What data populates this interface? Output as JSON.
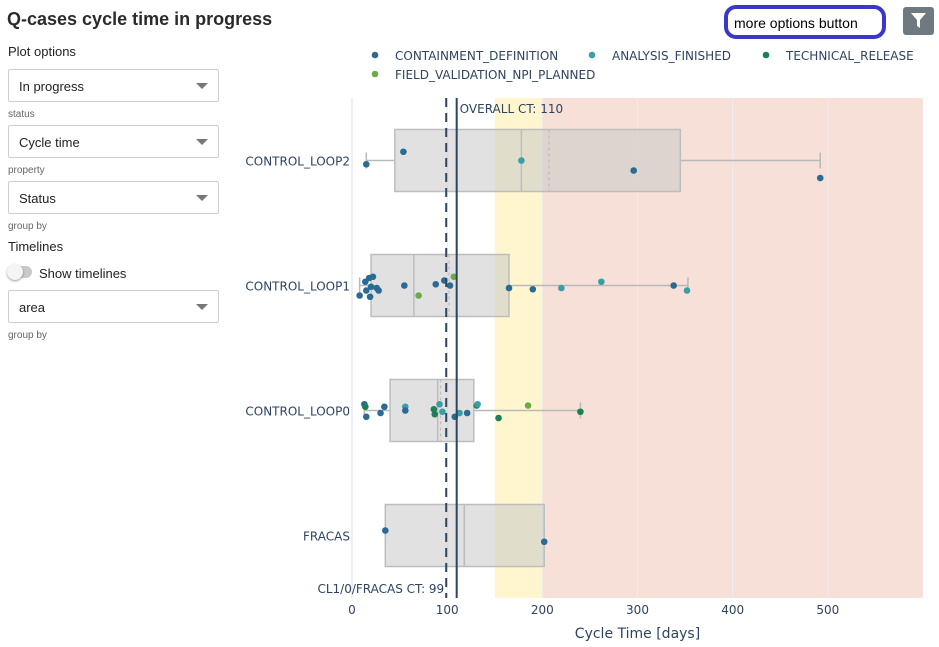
{
  "page": {
    "title": "Q-cases cycle time in progress"
  },
  "sidebar": {
    "plot_options_label": "Plot options",
    "status_select": {
      "value": "In progress",
      "helper": "status"
    },
    "property_select": {
      "value": "Cycle time",
      "helper": "property"
    },
    "groupby_select": {
      "value": "Status",
      "helper": "group by"
    },
    "timelines_label": "Timelines",
    "show_timelines": {
      "label": "Show timelines",
      "checked": false
    },
    "timeline_groupby_select": {
      "value": "area",
      "helper": "group by"
    }
  },
  "toolbar": {
    "more_options_label": "more options button",
    "filter_icon": "filter-icon"
  },
  "chart_data": {
    "type": "box",
    "orientation": "horizontal",
    "xlabel": "Cycle Time [days]",
    "ylabel": "",
    "xlim": [
      0,
      600
    ],
    "xticks": [
      0,
      100,
      200,
      300,
      400,
      500
    ],
    "categories": [
      "CONTROL_LOOP2",
      "CONTROL_LOOP1",
      "CONTROL_LOOP0",
      "FRACAS"
    ],
    "legend": {
      "placement": "top",
      "entries": [
        {
          "name": "CONTAINMENT_DEFINITION",
          "color": "#2a6a93"
        },
        {
          "name": "ANALYSIS_FINISHED",
          "color": "#3a9ea8"
        },
        {
          "name": "TECHNICAL_RELEASE",
          "color": "#1a8055"
        },
        {
          "name": "FIELD_VALIDATION_NPI_PLANNED",
          "color": "#6aab45"
        }
      ]
    },
    "bands": [
      {
        "from": 150,
        "to": 200,
        "color": "#fff6cf"
      },
      {
        "from": 200,
        "to": 600,
        "color": "#f6e0d7"
      }
    ],
    "reference_lines": [
      {
        "x": 110,
        "label": "OVERALL CT: 110",
        "style": "solid",
        "color": "#2e4460"
      },
      {
        "x": 99,
        "label": "CL1/0/FRACAS CT: 99",
        "style": "dashed",
        "color": "#2e4460"
      }
    ],
    "boxes": [
      {
        "category": "CONTROL_LOOP2",
        "whisker_low": 15,
        "q1": 45,
        "median": 178,
        "mean": 207,
        "q3": 345,
        "whisker_high": 492
      },
      {
        "category": "CONTROL_LOOP1",
        "whisker_low": 8,
        "q1": 20,
        "median": 65,
        "mean": 102,
        "q3": 165,
        "whisker_high": 353
      },
      {
        "category": "CONTROL_LOOP0",
        "whisker_low": 13,
        "q1": 40,
        "median": 90,
        "mean": 93,
        "q3": 128,
        "whisker_high": 240
      },
      {
        "category": "FRACAS",
        "whisker_low": 35,
        "q1": 35,
        "median": 118,
        "mean": 118,
        "q3": 202,
        "whisker_high": 202
      }
    ],
    "points": [
      {
        "category": "CONTROL_LOOP2",
        "x": 15,
        "jitter": 0.03,
        "series": "CONTAINMENT_DEFINITION"
      },
      {
        "category": "CONTROL_LOOP2",
        "x": 54,
        "jitter": -0.07,
        "series": "CONTAINMENT_DEFINITION"
      },
      {
        "category": "CONTROL_LOOP2",
        "x": 178,
        "jitter": 0.0,
        "series": "ANALYSIS_FINISHED"
      },
      {
        "category": "CONTROL_LOOP2",
        "x": 296,
        "jitter": 0.08,
        "series": "CONTAINMENT_DEFINITION"
      },
      {
        "category": "CONTROL_LOOP2",
        "x": 492,
        "jitter": 0.14,
        "series": "CONTAINMENT_DEFINITION"
      },
      {
        "category": "CONTROL_LOOP1",
        "x": 8,
        "jitter": 0.08,
        "series": "CONTAINMENT_DEFINITION"
      },
      {
        "category": "CONTROL_LOOP1",
        "x": 14,
        "jitter": -0.03,
        "series": "CONTAINMENT_DEFINITION"
      },
      {
        "category": "CONTROL_LOOP1",
        "x": 15,
        "jitter": 0.04,
        "series": "CONTAINMENT_DEFINITION"
      },
      {
        "category": "CONTROL_LOOP1",
        "x": 18,
        "jitter": -0.06,
        "series": "CONTAINMENT_DEFINITION"
      },
      {
        "category": "CONTROL_LOOP1",
        "x": 19,
        "jitter": 0.09,
        "series": "CONTAINMENT_DEFINITION"
      },
      {
        "category": "CONTROL_LOOP1",
        "x": 20,
        "jitter": 0.01,
        "series": "CONTAINMENT_DEFINITION"
      },
      {
        "category": "CONTROL_LOOP1",
        "x": 22,
        "jitter": -0.07,
        "series": "CONTAINMENT_DEFINITION"
      },
      {
        "category": "CONTROL_LOOP1",
        "x": 26,
        "jitter": 0.02,
        "series": "CONTAINMENT_DEFINITION"
      },
      {
        "category": "CONTROL_LOOP1",
        "x": 28,
        "jitter": 0.04,
        "series": "CONTAINMENT_DEFINITION"
      },
      {
        "category": "CONTROL_LOOP1",
        "x": 55,
        "jitter": 0.0,
        "series": "CONTAINMENT_DEFINITION"
      },
      {
        "category": "CONTROL_LOOP1",
        "x": 70,
        "jitter": 0.08,
        "series": "FIELD_VALIDATION_NPI_PLANNED"
      },
      {
        "category": "CONTROL_LOOP1",
        "x": 88,
        "jitter": -0.01,
        "series": "CONTAINMENT_DEFINITION"
      },
      {
        "category": "CONTROL_LOOP1",
        "x": 97,
        "jitter": -0.04,
        "series": "CONTAINMENT_DEFINITION"
      },
      {
        "category": "CONTROL_LOOP1",
        "x": 103,
        "jitter": 0.0,
        "series": "CONTAINMENT_DEFINITION"
      },
      {
        "category": "CONTROL_LOOP1",
        "x": 107,
        "jitter": -0.07,
        "series": "FIELD_VALIDATION_NPI_PLANNED"
      },
      {
        "category": "CONTROL_LOOP1",
        "x": 165,
        "jitter": 0.02,
        "series": "CONTAINMENT_DEFINITION"
      },
      {
        "category": "CONTROL_LOOP1",
        "x": 190,
        "jitter": 0.03,
        "series": "CONTAINMENT_DEFINITION"
      },
      {
        "category": "CONTROL_LOOP1",
        "x": 220,
        "jitter": 0.02,
        "series": "ANALYSIS_FINISHED"
      },
      {
        "category": "CONTROL_LOOP1",
        "x": 262,
        "jitter": -0.03,
        "series": "ANALYSIS_FINISHED"
      },
      {
        "category": "CONTROL_LOOP1",
        "x": 338,
        "jitter": 0.0,
        "series": "CONTAINMENT_DEFINITION"
      },
      {
        "category": "CONTROL_LOOP1",
        "x": 352,
        "jitter": 0.04,
        "series": "ANALYSIS_FINISHED"
      },
      {
        "category": "CONTROL_LOOP0",
        "x": 13,
        "jitter": -0.05,
        "series": "CONTAINMENT_DEFINITION"
      },
      {
        "category": "CONTROL_LOOP0",
        "x": 14,
        "jitter": -0.03,
        "series": "TECHNICAL_RELEASE"
      },
      {
        "category": "CONTROL_LOOP0",
        "x": 15,
        "jitter": 0.05,
        "series": "CONTAINMENT_DEFINITION"
      },
      {
        "category": "CONTROL_LOOP0",
        "x": 30,
        "jitter": 0.02,
        "series": "CONTAINMENT_DEFINITION"
      },
      {
        "category": "CONTROL_LOOP0",
        "x": 34,
        "jitter": -0.03,
        "series": "CONTAINMENT_DEFINITION"
      },
      {
        "category": "CONTROL_LOOP0",
        "x": 56,
        "jitter": -0.03,
        "series": "ANALYSIS_FINISHED"
      },
      {
        "category": "CONTROL_LOOP0",
        "x": 56,
        "jitter": 0.0,
        "series": "CONTAINMENT_DEFINITION"
      },
      {
        "category": "CONTROL_LOOP0",
        "x": 86,
        "jitter": -0.01,
        "series": "TECHNICAL_RELEASE"
      },
      {
        "category": "CONTROL_LOOP0",
        "x": 87,
        "jitter": 0.03,
        "series": "TECHNICAL_RELEASE"
      },
      {
        "category": "CONTROL_LOOP0",
        "x": 92,
        "jitter": -0.05,
        "series": "ANALYSIS_FINISHED"
      },
      {
        "category": "CONTROL_LOOP0",
        "x": 95,
        "jitter": 0.01,
        "series": "ANALYSIS_FINISHED"
      },
      {
        "category": "CONTROL_LOOP0",
        "x": 108,
        "jitter": 0.05,
        "series": "CONTAINMENT_DEFINITION"
      },
      {
        "category": "CONTROL_LOOP0",
        "x": 113,
        "jitter": 0.02,
        "series": "ANALYSIS_FINISHED"
      },
      {
        "category": "CONTROL_LOOP0",
        "x": 121,
        "jitter": 0.02,
        "series": "CONTAINMENT_DEFINITION"
      },
      {
        "category": "CONTROL_LOOP0",
        "x": 131,
        "jitter": -0.04,
        "series": "TECHNICAL_RELEASE"
      },
      {
        "category": "CONTROL_LOOP0",
        "x": 132,
        "jitter": -0.05,
        "series": "ANALYSIS_FINISHED"
      },
      {
        "category": "CONTROL_LOOP0",
        "x": 154,
        "jitter": 0.06,
        "series": "TECHNICAL_RELEASE"
      },
      {
        "category": "CONTROL_LOOP0",
        "x": 185,
        "jitter": -0.04,
        "series": "FIELD_VALIDATION_NPI_PLANNED"
      },
      {
        "category": "CONTROL_LOOP0",
        "x": 240,
        "jitter": 0.01,
        "series": "TECHNICAL_RELEASE"
      },
      {
        "category": "FRACAS",
        "x": 35,
        "jitter": -0.04,
        "series": "CONTAINMENT_DEFINITION"
      },
      {
        "category": "FRACAS",
        "x": 202,
        "jitter": 0.05,
        "series": "CONTAINMENT_DEFINITION"
      }
    ]
  }
}
